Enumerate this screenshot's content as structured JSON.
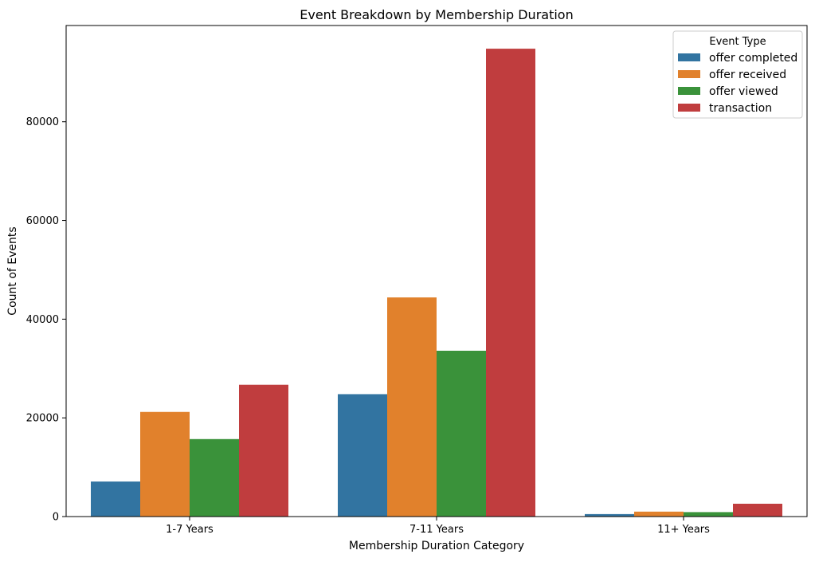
{
  "chart_data": {
    "type": "bar",
    "title": "Event Breakdown by Membership Duration",
    "xlabel": "Membership Duration Category",
    "ylabel": "Count of Events",
    "categories": [
      "1-7 Years",
      "7-11 Years",
      "11+ Years"
    ],
    "ylim": [
      0,
      99500
    ],
    "yticks": [
      0,
      20000,
      40000,
      60000,
      80000
    ],
    "grid": false,
    "legend": {
      "title": "Event Type",
      "placement": "top-right"
    },
    "series": [
      {
        "name": "offer completed",
        "color": "#3274a1",
        "values": [
          7100,
          24800,
          500
        ]
      },
      {
        "name": "offer received",
        "color": "#e1812c",
        "values": [
          21200,
          44400,
          1000
        ]
      },
      {
        "name": "offer viewed",
        "color": "#3a923a",
        "values": [
          15700,
          33600,
          900
        ]
      },
      {
        "name": "transaction",
        "color": "#c03d3e",
        "values": [
          26700,
          94800,
          2600
        ]
      }
    ]
  }
}
